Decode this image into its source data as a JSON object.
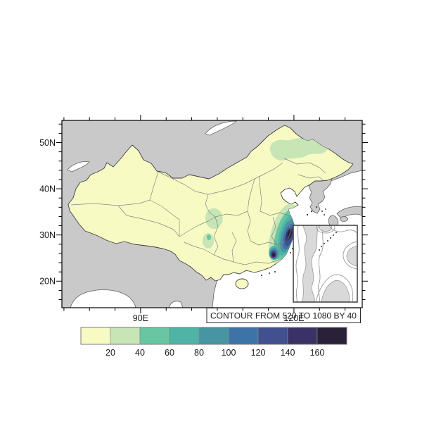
{
  "figure": {
    "background": "#ffffff"
  },
  "map": {
    "y_axis": {
      "ticks": [
        {
          "label": "50N",
          "value": 50
        },
        {
          "label": "40N",
          "value": 40
        },
        {
          "label": "30N",
          "value": 30
        },
        {
          "label": "20N",
          "value": 20
        }
      ]
    },
    "x_axis": {
      "ticks": [
        {
          "label": "90E",
          "value": 90
        },
        {
          "label": "120E",
          "value": 120
        }
      ]
    }
  },
  "contour_box": {
    "text": "CONTOUR FROM 520 TO 1080 BY 40"
  },
  "colorbar": {
    "tick_labels": [
      "20",
      "40",
      "60",
      "80",
      "100",
      "120",
      "140",
      "160"
    ],
    "colors": [
      "#f7fbc3",
      "#c7e5b5",
      "#68c6a2",
      "#4fb3a6",
      "#4795a3",
      "#3d74a8",
      "#41508f",
      "#3a3266",
      "#2a2139"
    ]
  },
  "palette": {
    "mask_gray": "#c9c9c9",
    "ocean_white": "#ffffff",
    "coastline": "#5f5f5f",
    "province_line": "#858585",
    "china_outline": "#3f3f3f",
    "inset_fill": "#d9d9d9",
    "inset_line": "#9a9a9a",
    "text": "#1a1a1a"
  },
  "chart_data": {
    "type": "filled_contour_map",
    "region": "China (provinces outlined); areas outside China masked gray; ocean white",
    "fill_levels": [
      20,
      40,
      60,
      80,
      100,
      120,
      140,
      160
    ],
    "fill_colors": [
      "#f7fbc3",
      "#c7e5b5",
      "#68c6a2",
      "#4fb3a6",
      "#4795a3",
      "#3d74a8",
      "#41508f",
      "#3a3266",
      "#2a2139"
    ],
    "x_axis": {
      "tick_labels": [
        "90E",
        "120E"
      ],
      "range_deg": [
        74.6,
        133.3
      ]
    },
    "y_axis": {
      "tick_labels": [
        "50N",
        "40N",
        "30N",
        "20N"
      ],
      "range_deg": [
        14.2,
        54.8
      ]
    },
    "contour_info": "CONTOUR FROM 520 TO 1080 BY 40",
    "features": [
      "base field < 20 over most of China (pale yellow)",
      "light-green patches (20-40) over northeast China and Sichuan",
      "strong coastal maximum along Zhejiang-Fujian coast with nested levels up to > 160 (dark navy cores)",
      "secondary dark core near eastern Guangdong coast",
      "lower-right inset panel over the western Pacific with gray line contours (520 to 1080 by 40) and gray shading",
      "labelbar with 9 colors and boundary labels 20-160 below the map"
    ],
    "legend_position": "bottom"
  }
}
